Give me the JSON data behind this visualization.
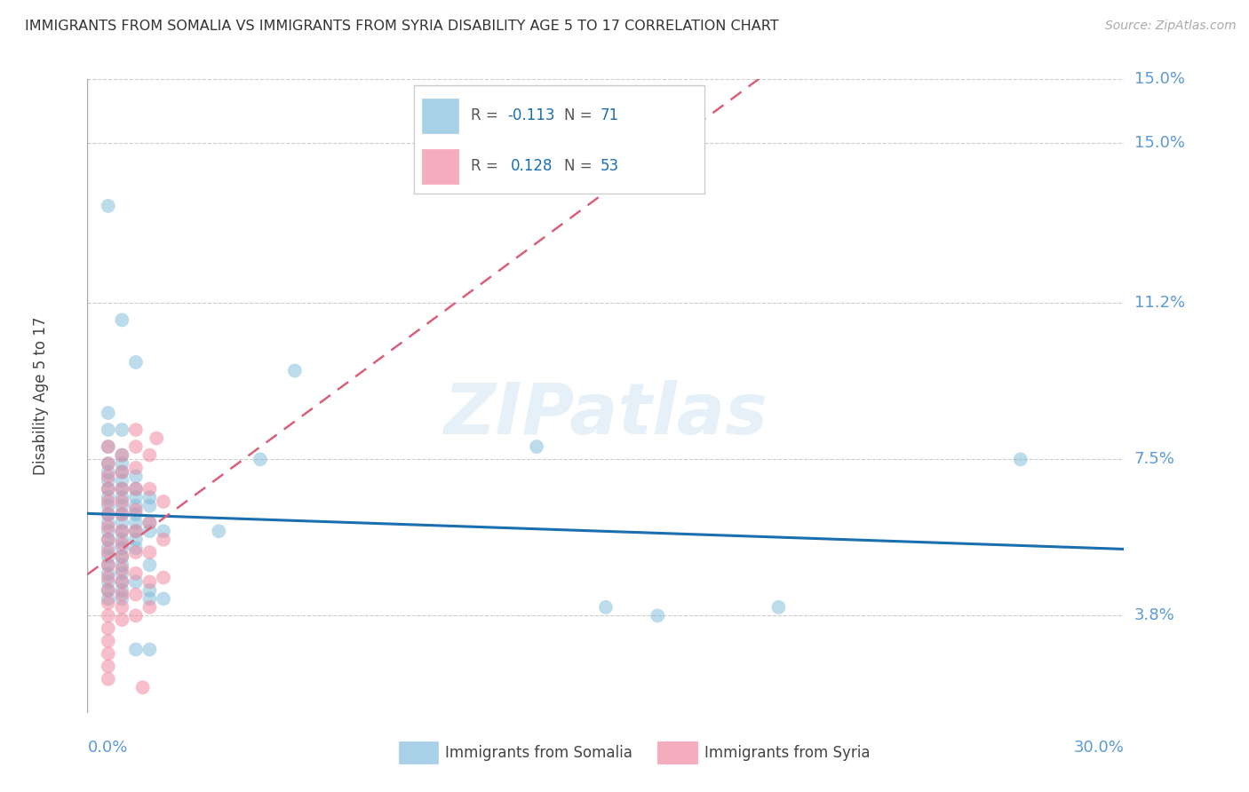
{
  "title": "IMMIGRANTS FROM SOMALIA VS IMMIGRANTS FROM SYRIA DISABILITY AGE 5 TO 17 CORRELATION CHART",
  "source": "Source: ZipAtlas.com",
  "xlabel_bottom_left": "0.0%",
  "xlabel_bottom_right": "30.0%",
  "ylabel": "Disability Age 5 to 17",
  "ytick_labels": [
    "3.8%",
    "7.5%",
    "11.2%",
    "15.0%"
  ],
  "ytick_values": [
    0.038,
    0.075,
    0.112,
    0.15
  ],
  "xmin": 0.0,
  "xmax": 0.3,
  "ymin": 0.015,
  "ymax": 0.165,
  "somalia_color": "#7ab8d9",
  "syria_color": "#f08098",
  "somalia_R": -0.113,
  "somalia_N": 71,
  "syria_R": 0.128,
  "syria_N": 53,
  "watermark": "ZIPatlas",
  "somalia_scatter": [
    [
      0.006,
      0.135
    ],
    [
      0.01,
      0.108
    ],
    [
      0.014,
      0.098
    ],
    [
      0.006,
      0.086
    ],
    [
      0.006,
      0.082
    ],
    [
      0.01,
      0.082
    ],
    [
      0.006,
      0.078
    ],
    [
      0.01,
      0.076
    ],
    [
      0.006,
      0.074
    ],
    [
      0.01,
      0.074
    ],
    [
      0.006,
      0.072
    ],
    [
      0.01,
      0.072
    ],
    [
      0.014,
      0.071
    ],
    [
      0.006,
      0.07
    ],
    [
      0.01,
      0.07
    ],
    [
      0.006,
      0.068
    ],
    [
      0.01,
      0.068
    ],
    [
      0.014,
      0.068
    ],
    [
      0.006,
      0.066
    ],
    [
      0.01,
      0.066
    ],
    [
      0.014,
      0.066
    ],
    [
      0.018,
      0.066
    ],
    [
      0.006,
      0.064
    ],
    [
      0.01,
      0.064
    ],
    [
      0.014,
      0.064
    ],
    [
      0.018,
      0.064
    ],
    [
      0.006,
      0.062
    ],
    [
      0.01,
      0.062
    ],
    [
      0.014,
      0.062
    ],
    [
      0.006,
      0.06
    ],
    [
      0.01,
      0.06
    ],
    [
      0.014,
      0.06
    ],
    [
      0.018,
      0.06
    ],
    [
      0.006,
      0.058
    ],
    [
      0.01,
      0.058
    ],
    [
      0.014,
      0.058
    ],
    [
      0.018,
      0.058
    ],
    [
      0.022,
      0.058
    ],
    [
      0.006,
      0.056
    ],
    [
      0.01,
      0.056
    ],
    [
      0.014,
      0.056
    ],
    [
      0.006,
      0.054
    ],
    [
      0.01,
      0.054
    ],
    [
      0.014,
      0.054
    ],
    [
      0.006,
      0.052
    ],
    [
      0.01,
      0.052
    ],
    [
      0.006,
      0.05
    ],
    [
      0.01,
      0.05
    ],
    [
      0.018,
      0.05
    ],
    [
      0.006,
      0.048
    ],
    [
      0.01,
      0.048
    ],
    [
      0.006,
      0.046
    ],
    [
      0.01,
      0.046
    ],
    [
      0.014,
      0.046
    ],
    [
      0.006,
      0.044
    ],
    [
      0.01,
      0.044
    ],
    [
      0.018,
      0.044
    ],
    [
      0.006,
      0.042
    ],
    [
      0.01,
      0.042
    ],
    [
      0.018,
      0.042
    ],
    [
      0.022,
      0.042
    ],
    [
      0.038,
      0.058
    ],
    [
      0.05,
      0.075
    ],
    [
      0.06,
      0.096
    ],
    [
      0.014,
      0.03
    ],
    [
      0.018,
      0.03
    ],
    [
      0.13,
      0.078
    ],
    [
      0.15,
      0.04
    ],
    [
      0.165,
      0.038
    ],
    [
      0.2,
      0.04
    ],
    [
      0.27,
      0.075
    ]
  ],
  "syria_scatter": [
    [
      0.006,
      0.078
    ],
    [
      0.006,
      0.074
    ],
    [
      0.006,
      0.071
    ],
    [
      0.006,
      0.068
    ],
    [
      0.006,
      0.065
    ],
    [
      0.006,
      0.062
    ],
    [
      0.006,
      0.059
    ],
    [
      0.006,
      0.056
    ],
    [
      0.006,
      0.053
    ],
    [
      0.006,
      0.05
    ],
    [
      0.006,
      0.047
    ],
    [
      0.006,
      0.044
    ],
    [
      0.006,
      0.041
    ],
    [
      0.006,
      0.038
    ],
    [
      0.006,
      0.035
    ],
    [
      0.006,
      0.032
    ],
    [
      0.006,
      0.029
    ],
    [
      0.006,
      0.026
    ],
    [
      0.006,
      0.023
    ],
    [
      0.01,
      0.076
    ],
    [
      0.01,
      0.072
    ],
    [
      0.01,
      0.068
    ],
    [
      0.01,
      0.065
    ],
    [
      0.01,
      0.062
    ],
    [
      0.01,
      0.058
    ],
    [
      0.01,
      0.055
    ],
    [
      0.01,
      0.052
    ],
    [
      0.01,
      0.049
    ],
    [
      0.01,
      0.046
    ],
    [
      0.01,
      0.043
    ],
    [
      0.01,
      0.04
    ],
    [
      0.01,
      0.037
    ],
    [
      0.014,
      0.082
    ],
    [
      0.014,
      0.078
    ],
    [
      0.014,
      0.073
    ],
    [
      0.014,
      0.068
    ],
    [
      0.014,
      0.063
    ],
    [
      0.014,
      0.058
    ],
    [
      0.014,
      0.053
    ],
    [
      0.014,
      0.048
    ],
    [
      0.014,
      0.043
    ],
    [
      0.014,
      0.038
    ],
    [
      0.018,
      0.076
    ],
    [
      0.018,
      0.068
    ],
    [
      0.018,
      0.06
    ],
    [
      0.018,
      0.053
    ],
    [
      0.018,
      0.046
    ],
    [
      0.018,
      0.04
    ],
    [
      0.022,
      0.065
    ],
    [
      0.022,
      0.056
    ],
    [
      0.022,
      0.047
    ],
    [
      0.016,
      0.021
    ],
    [
      0.02,
      0.08
    ]
  ],
  "somalia_line_color": "#1a6faf",
  "syria_line_color": "#d9607a",
  "background_color": "#ffffff",
  "grid_color": "#cccccc",
  "axis_label_color": "#5b9bd5",
  "title_color": "#333333",
  "legend_r1": "R = -0.113   N = 71",
  "legend_r2": "R =  0.128   N = 53"
}
